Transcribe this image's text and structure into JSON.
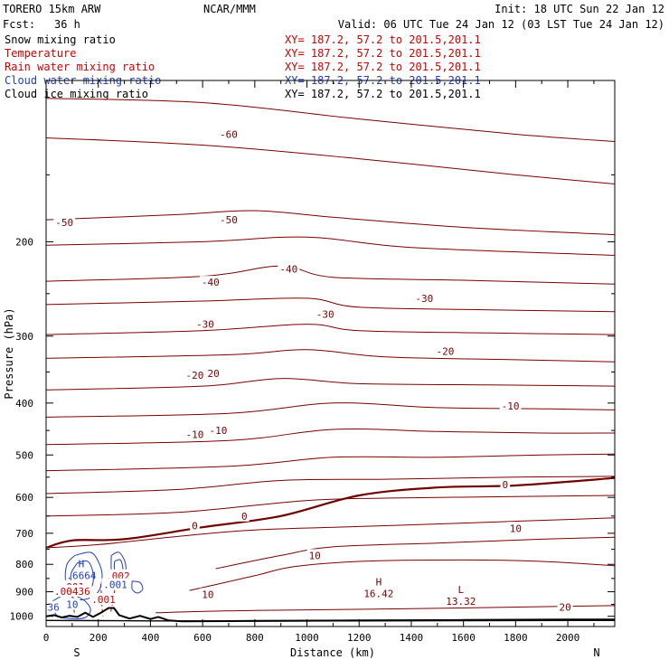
{
  "header": {
    "model": "TORERO  15km ARW",
    "fcst_label": "Fcst:",
    "fcst_value": "36 h",
    "org": "NCAR/MMM",
    "init": "Init: 18 UTC Sun 22 Jan 12",
    "valid": "Valid: 06 UTC Tue 24 Jan 12 (03 LST Tue 24 Jan 12)"
  },
  "fields": [
    {
      "name": "Snow mixing ratio",
      "xy": "XY= 187.2, 57.2 to 201.5,201.1",
      "color": "#000000"
    },
    {
      "name": "Temperature",
      "xy": "XY= 187.2, 57.2 to 201.5,201.1",
      "color": "#cc0000"
    },
    {
      "name": "Rain water mixing ratio",
      "xy": "XY= 187.2, 57.2 to 201.5,201.1",
      "color": "#cc0000"
    },
    {
      "name": "Cloud water mixing ratio",
      "xy": "XY= 187.2, 57.2 to 201.5,201.1",
      "color": "#1f3fbf"
    },
    {
      "name": "Cloud ice mixing ratio",
      "xy": "XY= 187.2, 57.2 to 201.5,201.1",
      "color": "#000000"
    }
  ],
  "chart_data": {
    "type": "contour",
    "xlabel": "Distance (km)",
    "ylabel": "Pressure (hPa)",
    "xlim": [
      0,
      2180
    ],
    "ylim": [
      1045,
      100
    ],
    "y_scale": "log",
    "x_ticks": [
      0,
      200,
      400,
      600,
      800,
      1000,
      1200,
      1400,
      1600,
      1800,
      2000
    ],
    "y_ticks": [
      200,
      300,
      400,
      500,
      600,
      700,
      800,
      900,
      1000
    ],
    "x_end_labels": {
      "left": "S",
      "right": "N"
    },
    "colors": {
      "temperature": "#7a0000",
      "zero_isotherm": "#6e0000",
      "cloud_water": "#1f3fbf",
      "rain": "#d00000",
      "terrain": "#000000"
    },
    "isotherms": [
      {
        "value": -60,
        "label": "-60",
        "points": [
          [
            0,
            108
          ],
          [
            600,
            110
          ],
          [
            1200,
            118
          ],
          [
            1800,
            126
          ],
          [
            2180,
            130
          ]
        ]
      },
      {
        "value": -60,
        "label": "",
        "points": [
          [
            0,
            128
          ],
          [
            600,
            132
          ],
          [
            1200,
            140
          ],
          [
            1800,
            150
          ],
          [
            2180,
            156
          ]
        ]
      },
      {
        "value": -50,
        "label": "-50",
        "points": [
          [
            0,
            182
          ],
          [
            500,
            178
          ],
          [
            800,
            175
          ],
          [
            1100,
            180
          ],
          [
            1600,
            188
          ],
          [
            2180,
            194
          ]
        ]
      },
      {
        "value": -50,
        "label": "",
        "points": [
          [
            0,
            203
          ],
          [
            600,
            200
          ],
          [
            1000,
            196
          ],
          [
            1400,
            205
          ],
          [
            2180,
            212
          ]
        ]
      },
      {
        "value": -40,
        "label": "-40",
        "points": [
          [
            0,
            237
          ],
          [
            600,
            232
          ],
          [
            900,
            222
          ],
          [
            1100,
            233
          ],
          [
            1600,
            236
          ],
          [
            2180,
            240
          ]
        ]
      },
      {
        "value": -40,
        "label": "",
        "points": [
          [
            0,
            262
          ],
          [
            600,
            258
          ],
          [
            1000,
            255
          ],
          [
            1200,
            265
          ],
          [
            1700,
            268
          ],
          [
            2180,
            270
          ]
        ]
      },
      {
        "value": -30,
        "label": "-30",
        "points": [
          [
            0,
            298
          ],
          [
            600,
            293
          ],
          [
            1000,
            285
          ],
          [
            1200,
            293
          ],
          [
            1700,
            296
          ],
          [
            2180,
            298
          ]
        ]
      },
      {
        "value": -30,
        "label": "",
        "points": [
          [
            0,
            330
          ],
          [
            700,
            325
          ],
          [
            1000,
            318
          ],
          [
            1300,
            328
          ],
          [
            1800,
            332
          ],
          [
            2180,
            335
          ]
        ]
      },
      {
        "value": -20,
        "label": "-20",
        "points": [
          [
            0,
            378
          ],
          [
            600,
            372
          ],
          [
            900,
            360
          ],
          [
            1200,
            368
          ],
          [
            1700,
            370
          ],
          [
            2180,
            372
          ]
        ]
      },
      {
        "value": -20,
        "label": "",
        "points": [
          [
            0,
            425
          ],
          [
            700,
            418
          ],
          [
            1100,
            400
          ],
          [
            1500,
            408
          ],
          [
            1900,
            410
          ],
          [
            2180,
            412
          ]
        ]
      },
      {
        "value": -10,
        "label": "-10",
        "points": [
          [
            0,
            478
          ],
          [
            700,
            470
          ],
          [
            1100,
            448
          ],
          [
            1500,
            452
          ],
          [
            1900,
            455
          ],
          [
            2180,
            455
          ]
        ]
      },
      {
        "value": -10,
        "label": "",
        "points": [
          [
            0,
            535
          ],
          [
            700,
            525
          ],
          [
            1100,
            505
          ],
          [
            1500,
            505
          ],
          [
            1900,
            500
          ],
          [
            2180,
            498
          ]
        ]
      },
      {
        "value": -10,
        "label": "",
        "points": [
          [
            0,
            590
          ],
          [
            500,
            580
          ],
          [
            900,
            558
          ],
          [
            1300,
            555
          ],
          [
            1800,
            550
          ],
          [
            2180,
            548
          ]
        ]
      },
      {
        "value": 0,
        "label": "",
        "points": [
          [
            0,
            650
          ],
          [
            500,
            640
          ],
          [
            1000,
            608
          ],
          [
            1300,
            602
          ],
          [
            1800,
            598
          ],
          [
            2180,
            595
          ]
        ]
      },
      {
        "value": 10,
        "label": "10",
        "points": [
          [
            0,
            745
          ],
          [
            200,
            735
          ],
          [
            500,
            710
          ],
          [
            800,
            690
          ],
          [
            1200,
            680
          ],
          [
            1600,
            670
          ],
          [
            2180,
            655
          ]
        ]
      },
      {
        "value": 10,
        "label": "",
        "points": [
          [
            650,
            815
          ],
          [
            900,
            770
          ],
          [
            1100,
            742
          ],
          [
            1500,
            730
          ],
          [
            1900,
            718
          ],
          [
            2180,
            712
          ]
        ]
      },
      {
        "value": 10,
        "label": "",
        "points": [
          [
            550,
            895
          ],
          [
            800,
            840
          ],
          [
            950,
            808
          ],
          [
            1200,
            790
          ],
          [
            1600,
            785
          ],
          [
            1900,
            790
          ],
          [
            2180,
            805
          ]
        ]
      },
      {
        "value": 20,
        "label": "20",
        "points": [
          [
            420,
            985
          ],
          [
            800,
            975
          ],
          [
            1400,
            968
          ],
          [
            2000,
            958
          ],
          [
            2180,
            955
          ]
        ]
      }
    ],
    "zero_isotherm": {
      "value": 0,
      "label": "0",
      "points": [
        [
          0,
          745
        ],
        [
          100,
          722
        ],
        [
          300,
          718
        ],
        [
          600,
          682
        ],
        [
          900,
          650
        ],
        [
          1200,
          595
        ],
        [
          1500,
          575
        ],
        [
          1800,
          570
        ],
        [
          2180,
          552
        ]
      ]
    },
    "isotherm_labels": [
      {
        "text": "-60",
        "x": 700,
        "y": 126
      },
      {
        "text": "-50",
        "x": 70,
        "y": 184
      },
      {
        "text": "-50",
        "x": 700,
        "y": 182
      },
      {
        "text": "-40",
        "x": 630,
        "y": 238
      },
      {
        "text": "-40",
        "x": 930,
        "y": 225
      },
      {
        "text": "-30",
        "x": 1070,
        "y": 273
      },
      {
        "text": "-30",
        "x": 1450,
        "y": 255
      },
      {
        "text": "-30",
        "x": 610,
        "y": 285
      },
      {
        "text": "-20",
        "x": 1530,
        "y": 320
      },
      {
        "text": "-20",
        "x": 630,
        "y": 352
      },
      {
        "text": "-20",
        "x": 570,
        "y": 355
      },
      {
        "text": "-10",
        "x": 1780,
        "y": 405
      },
      {
        "text": "-10",
        "x": 660,
        "y": 450
      },
      {
        "text": "-10",
        "x": 570,
        "y": 458
      },
      {
        "text": "0",
        "x": 1760,
        "y": 568
      },
      {
        "text": "0",
        "x": 760,
        "y": 650
      },
      {
        "text": "0",
        "x": 570,
        "y": 678
      },
      {
        "text": "10",
        "x": 1800,
        "y": 685
      },
      {
        "text": "10",
        "x": 1030,
        "y": 770
      },
      {
        "text": "10",
        "x": 620,
        "y": 910
      },
      {
        "text": "20",
        "x": 1990,
        "y": 962
      }
    ],
    "extrema": [
      {
        "type": "H",
        "value": "16.42",
        "x": 1275,
        "y": 875
      },
      {
        "type": "L",
        "value": "13.32",
        "x": 1590,
        "y": 905
      },
      {
        "type": "H",
        "value": ".6664",
        "x": 135,
        "y": 810
      }
    ],
    "small_labels": [
      {
        "text": ".001",
        "x": 100,
        "y": 880,
        "color": "#cc0000"
      },
      {
        "text": ".002",
        "x": 275,
        "y": 840,
        "color": "#cc0000"
      },
      {
        "text": ".001",
        "x": 265,
        "y": 873,
        "color": "#1f3fbf"
      },
      {
        "text": ".00436",
        "x": 100,
        "y": 898,
        "color": "#cc0000"
      },
      {
        "text": ".001",
        "x": 220,
        "y": 930,
        "color": "#cc0000"
      },
      {
        "text": "10",
        "x": 100,
        "y": 950,
        "color": "#1f3fbf"
      },
      {
        "text": "36",
        "x": 28,
        "y": 962,
        "color": "#1f3fbf"
      }
    ],
    "cloud_water_contours": [
      {
        "points": [
          [
            110,
            770
          ],
          [
            170,
            760
          ],
          [
            200,
            790
          ],
          [
            215,
            840
          ],
          [
            200,
            900
          ],
          [
            150,
            930
          ],
          [
            100,
            920
          ],
          [
            75,
            860
          ],
          [
            80,
            800
          ],
          [
            110,
            770
          ]
        ]
      },
      {
        "points": [
          [
            120,
            795
          ],
          [
            160,
            790
          ],
          [
            180,
            830
          ],
          [
            175,
            880
          ],
          [
            140,
            900
          ],
          [
            105,
            880
          ],
          [
            95,
            835
          ],
          [
            120,
            795
          ]
        ]
      },
      {
        "points": [
          [
            250,
            770
          ],
          [
            280,
            760
          ],
          [
            305,
            800
          ],
          [
            300,
            860
          ],
          [
            280,
            880
          ],
          [
            258,
            860
          ],
          [
            250,
            820
          ],
          [
            250,
            770
          ]
        ]
      },
      {
        "points": [
          [
            262,
            790
          ],
          [
            285,
            785
          ],
          [
            295,
            820
          ],
          [
            288,
            850
          ],
          [
            270,
            852
          ],
          [
            262,
            820
          ],
          [
            262,
            790
          ]
        ]
      },
      {
        "points": [
          [
            330,
            860
          ],
          [
            360,
            865
          ],
          [
            370,
            890
          ],
          [
            350,
            905
          ],
          [
            330,
            890
          ],
          [
            330,
            860
          ]
        ]
      },
      {
        "points": [
          [
            20,
            940
          ],
          [
            80,
            910
          ],
          [
            140,
            930
          ],
          [
            170,
            970
          ],
          [
            150,
            1005
          ],
          [
            90,
            1010
          ],
          [
            40,
            995
          ],
          [
            20,
            940
          ]
        ]
      }
    ],
    "rain_contours": [
      {
        "points": [
          [
            98,
            870
          ],
          [
            100,
            920
          ],
          [
            105,
            960
          ],
          [
            110,
            995
          ]
        ]
      },
      {
        "points": [
          [
            210,
            870
          ],
          [
            212,
            920
          ],
          [
            215,
            970
          ],
          [
            218,
            1000
          ]
        ]
      },
      {
        "points": [
          [
            268,
            845
          ],
          [
            262,
            900
          ],
          [
            255,
            945
          ],
          [
            248,
            980
          ]
        ]
      }
    ],
    "terrain": [
      [
        0,
        1000
      ],
      [
        30,
        995
      ],
      [
        60,
        1005
      ],
      [
        90,
        998
      ],
      [
        120,
        1003
      ],
      [
        150,
        985
      ],
      [
        180,
        1003
      ],
      [
        210,
        985
      ],
      [
        240,
        965
      ],
      [
        260,
        965
      ],
      [
        280,
        995
      ],
      [
        320,
        1010
      ],
      [
        360,
        998
      ],
      [
        400,
        1012
      ],
      [
        430,
        1003
      ],
      [
        470,
        1018
      ],
      [
        520,
        1022
      ],
      [
        800,
        1020
      ],
      [
        1200,
        1018
      ],
      [
        1600,
        1016
      ],
      [
        2000,
        1014
      ],
      [
        2180,
        1014
      ]
    ],
    "terrain_floor": [
      [
        0,
        1018
      ],
      [
        200,
        1019
      ],
      [
        400,
        1020
      ],
      [
        800,
        1021
      ],
      [
        1600,
        1019
      ],
      [
        2180,
        1018
      ]
    ]
  }
}
